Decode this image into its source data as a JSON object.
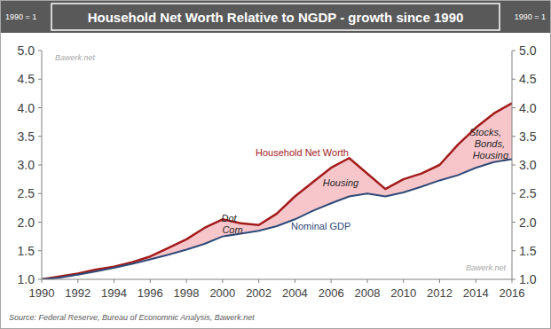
{
  "chart_data": {
    "type": "line",
    "title": "Household Net Worth Relative to NGDP - growth since 1990",
    "ylabel": "1990 = 1",
    "y2label": "1990 = 1",
    "watermark": "Bawerk.net",
    "source": "Source: Federal Reserve, Bureau of Economnic Analysis, Bawerk.net",
    "annotations": [
      "Dot Com",
      "Housing",
      "Stocks, Bonds, Housing"
    ],
    "x": [
      1990,
      1991,
      1992,
      1993,
      1994,
      1995,
      1996,
      1997,
      1998,
      1999,
      2000,
      2001,
      2002,
      2003,
      2004,
      2005,
      2006,
      2007,
      2008,
      2009,
      2010,
      2011,
      2012,
      2013,
      2014,
      2015,
      2016
    ],
    "series": [
      {
        "name": "Household Net Worth",
        "color": "#a31b1b",
        "values": [
          1.0,
          1.05,
          1.1,
          1.17,
          1.22,
          1.3,
          1.4,
          1.55,
          1.7,
          1.9,
          2.05,
          1.98,
          1.95,
          2.15,
          2.45,
          2.7,
          2.95,
          3.12,
          2.85,
          2.58,
          2.75,
          2.85,
          3.0,
          3.35,
          3.65,
          3.9,
          4.08
        ]
      },
      {
        "name": "Nominal GDP",
        "color": "#2f4a78",
        "values": [
          1.0,
          1.03,
          1.08,
          1.14,
          1.2,
          1.27,
          1.35,
          1.43,
          1.52,
          1.62,
          1.75,
          1.8,
          1.85,
          1.93,
          2.05,
          2.2,
          2.33,
          2.45,
          2.5,
          2.45,
          2.52,
          2.62,
          2.73,
          2.82,
          2.95,
          3.05,
          3.1
        ]
      }
    ],
    "color": "#f7c6cb",
    "xlim": [
      1990,
      2016
    ],
    "xticks": [
      1990,
      1992,
      1994,
      1996,
      1998,
      2000,
      2002,
      2004,
      2006,
      2008,
      2010,
      2012,
      2014,
      2016
    ],
    "ylim": [
      1,
      5
    ],
    "yticks": [
      {
        "value": 1,
        "label": "1.0"
      },
      1.5,
      {
        "value": 2,
        "label": "2.0"
      },
      2.5,
      {
        "value": 3,
        "label": "3.0"
      },
      3.5,
      {
        "value": 4,
        "label": "4.0"
      },
      4.5,
      {
        "value": 5,
        "label": "5.0"
      }
    ],
    "y2lim": [
      1,
      5
    ],
    "y2ticks": [
      {
        "value": 1,
        "label": "1.0"
      },
      1.5,
      {
        "value": 2,
        "label": "2.0"
      },
      2.5,
      {
        "value": 3,
        "label": "3.0"
      },
      3.5,
      {
        "value": 4,
        "label": "4.0"
      },
      4.5,
      {
        "value": 5,
        "label": "5.0"
      }
    ],
    "grid": false
  }
}
